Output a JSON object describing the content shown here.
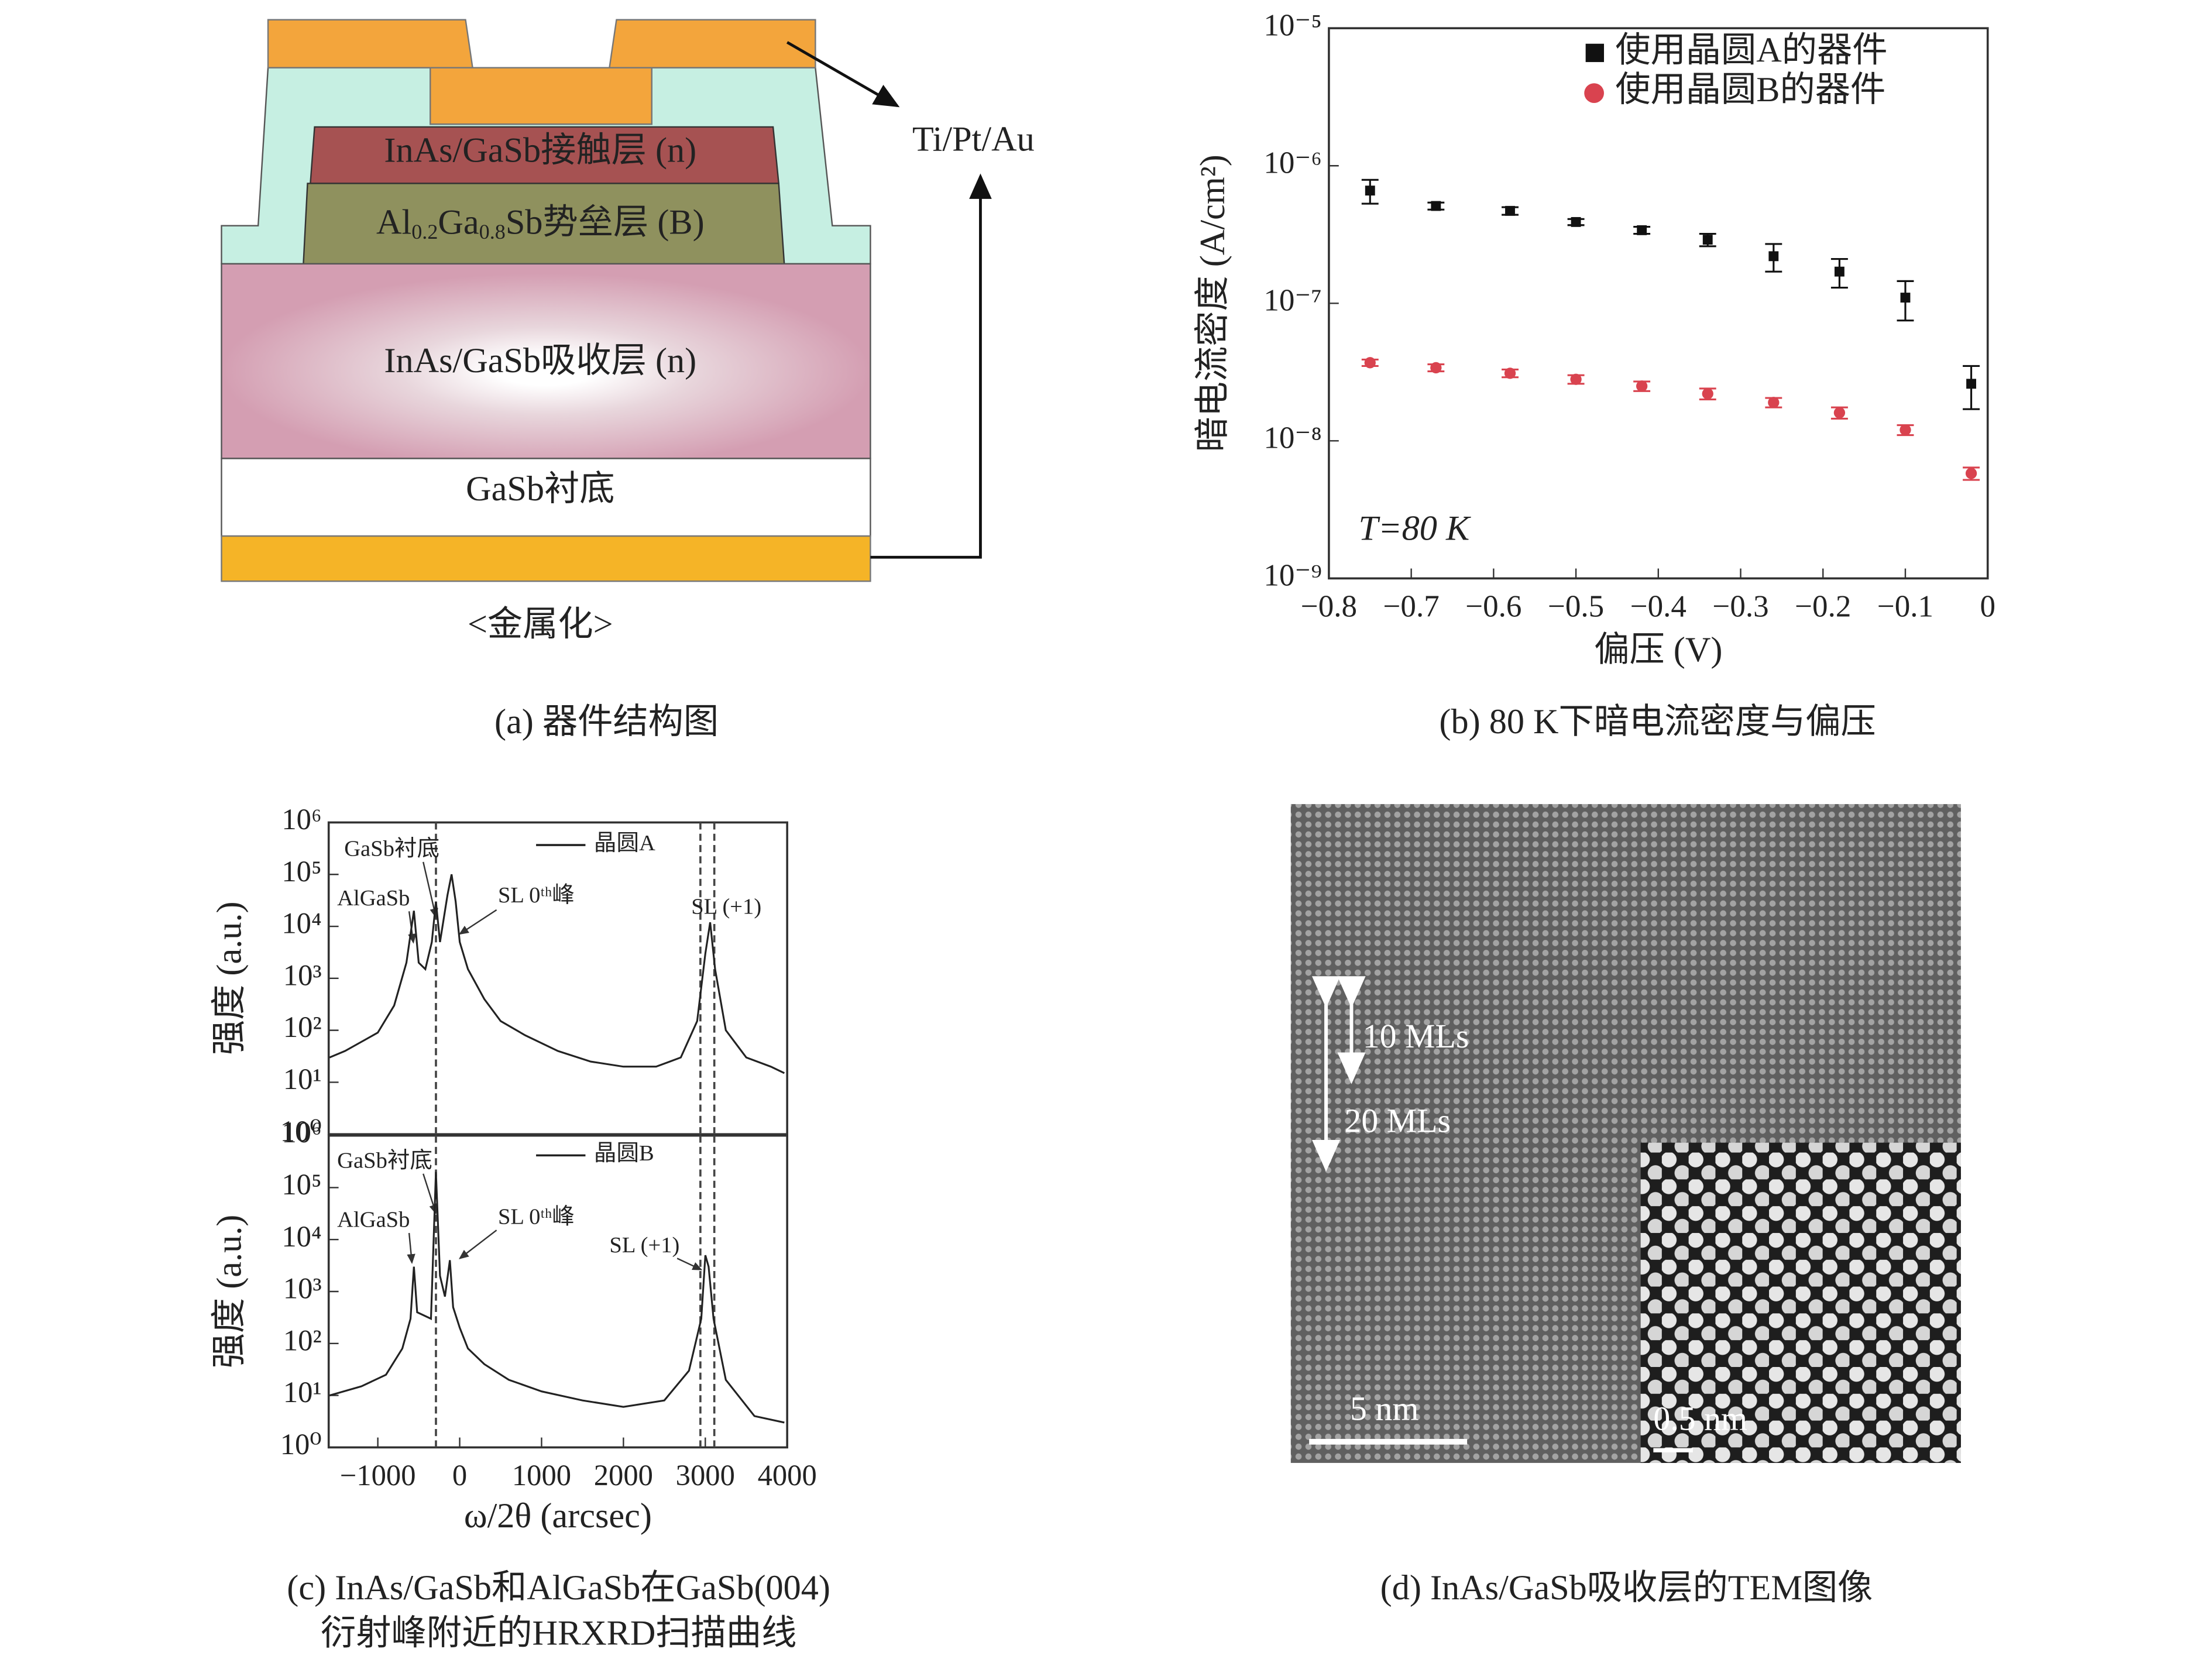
{
  "diagram": {
    "layers": {
      "contact": "InAs/GaSb接触层 (n)",
      "barrier": [
        "Al",
        "0.2",
        "Ga",
        "0.8",
        "Sb势垒层 (B)"
      ],
      "absorber": "InAs/GaSb吸收层 (n)",
      "substrate": "GaSb衬底"
    },
    "metal_label": "Ti/Pt/Au",
    "metallization": "<金属化>"
  },
  "chart_data": [
    {
      "type": "scatter",
      "log_y": true,
      "ylabel": "暗电流密度 (A/cm²)",
      "xlabel": "偏压 (V)",
      "annotations": [
        "T=80 K"
      ],
      "legend": "upper right",
      "xlim": [
        -0.8,
        0
      ],
      "xticks": [
        {
          "value": -0.8,
          "label": "−0.8"
        },
        {
          "value": -0.7,
          "label": "−0.7"
        },
        {
          "value": -0.6,
          "label": "−0.6"
        },
        {
          "value": -0.5,
          "label": "−0.5"
        },
        {
          "value": -0.4,
          "label": "−0.4"
        },
        {
          "value": -0.3,
          "label": "−0.3"
        },
        {
          "value": -0.2,
          "label": "−0.2"
        },
        {
          "value": -0.1,
          "label": "−0.1"
        },
        0
      ],
      "ylim": [
        1e-09,
        1e-05
      ],
      "yticks": [
        {
          "value": 1e-09,
          "label": "10⁻⁹"
        },
        {
          "value": 1e-08,
          "label": "10⁻⁸"
        },
        {
          "value": 1e-07,
          "label": "10⁻⁷"
        },
        {
          "value": 1e-06,
          "label": "10⁻⁶"
        },
        {
          "value": 1e-05,
          "label": "10⁻⁵"
        }
      ],
      "x": [
        -0.75,
        -0.67,
        -0.58,
        -0.5,
        -0.42,
        -0.34,
        -0.26,
        -0.18,
        -0.1,
        -0.02
      ],
      "series": [
        {
          "name": "使用晶圆A的器件",
          "color": "#111111",
          "marker": "square",
          "values": [
            6.6e-07,
            5.1e-07,
            4.7e-07,
            3.9e-07,
            3.4e-07,
            2.9e-07,
            2.2e-07,
            1.7e-07,
            1.1e-07,
            2.6e-08
          ],
          "errors": [
            1.3e-07,
            3e-08,
            3e-08,
            2e-08,
            2e-08,
            3e-08,
            5e-08,
            4e-08,
            3.5e-08,
            9e-09
          ]
        },
        {
          "name": "使用晶圆B的器件",
          "color": "#d9434f",
          "marker": "circle",
          "values": [
            3.7e-08,
            3.4e-08,
            3.1e-08,
            2.8e-08,
            2.5e-08,
            2.2e-08,
            1.9e-08,
            1.6e-08,
            1.2e-08,
            5.8e-09
          ],
          "errors": [
            2e-09,
            2e-09,
            2e-09,
            2e-09,
            2e-09,
            2e-09,
            1.5e-09,
            1.5e-09,
            1e-09,
            6e-10
          ]
        }
      ]
    },
    {
      "type": "line",
      "log_y": true,
      "ylabel": "强度 (a.u.)",
      "annotations": [
        "GaSb衬底",
        "AlGaSb",
        "SL 0ᵗʰ峰",
        "SL (+1)"
      ],
      "xlim": [
        -1600,
        4000
      ],
      "ylim": [
        1,
        1000000
      ],
      "yticks": [
        {
          "value": 1,
          "label": "10⁰"
        },
        {
          "value": 10,
          "label": "10¹"
        },
        {
          "value": 100,
          "label": "10²"
        },
        {
          "value": 1000,
          "label": "10³"
        },
        {
          "value": 10000,
          "label": "10⁴"
        },
        {
          "value": 100000,
          "label": "10⁵"
        },
        {
          "value": 1000000,
          "label": "10⁶"
        }
      ],
      "vlines": [
        -290,
        2940,
        3110
      ],
      "series": [
        {
          "name": "晶圆A",
          "color": "#222222",
          "x": [
            -1590,
            -1400,
            -1200,
            -1000,
            -800,
            -650,
            -560,
            -500,
            -420,
            -340,
            -290,
            -240,
            -150,
            -100,
            -50,
            0,
            100,
            300,
            500,
            800,
            1200,
            1600,
            2000,
            2400,
            2700,
            2900,
            3000,
            3060,
            3120,
            3250,
            3500,
            3800,
            3965
          ],
          "values": [
            30,
            40,
            60,
            90,
            300,
            2000,
            20000,
            2000,
            1500,
            5000,
            30000,
            5000,
            40000,
            100000,
            30000,
            5000,
            1500,
            400,
            150,
            80,
            40,
            25,
            20,
            20,
            30,
            150,
            3000,
            12000,
            1500,
            100,
            30,
            20,
            15
          ]
        }
      ]
    },
    {
      "type": "line",
      "log_y": true,
      "ylabel": "强度 (a.u.)",
      "xlabel": "ω/2θ (arcsec)",
      "annotations": [
        "GaSb衬底",
        "AlGaSb",
        "SL 0ᵗʰ峰",
        "SL (+1)"
      ],
      "xlim": [
        -1600,
        4000
      ],
      "xticks": [
        {
          "value": -1000,
          "label": "−1000"
        },
        0,
        1000,
        2000,
        3000,
        4000
      ],
      "ylim": [
        1,
        1000000
      ],
      "yticks": [
        {
          "value": 1,
          "label": "10⁰"
        },
        {
          "value": 10,
          "label": "10¹"
        },
        {
          "value": 100,
          "label": "10²"
        },
        {
          "value": 1000,
          "label": "10³"
        },
        {
          "value": 10000,
          "label": "10⁴"
        },
        {
          "value": 100000,
          "label": "10⁵"
        },
        {
          "value": 1000000,
          "label": "10⁶"
        }
      ],
      "vlines": [
        -290,
        2940,
        3110
      ],
      "series": [
        {
          "name": "晶圆B",
          "color": "#222222",
          "x": [
            -1590,
            -1200,
            -900,
            -700,
            -600,
            -560,
            -520,
            -350,
            -290,
            -240,
            -180,
            -120,
            -80,
            0,
            100,
            300,
            600,
            1000,
            1500,
            2000,
            2500,
            2800,
            2950,
            3000,
            3040,
            3100,
            3250,
            3600,
            3965
          ],
          "values": [
            10,
            15,
            25,
            80,
            300,
            3000,
            400,
            300,
            200000,
            2000,
            800,
            4000,
            500,
            200,
            80,
            40,
            20,
            12,
            8,
            6,
            8,
            30,
            300,
            5000,
            3000,
            300,
            20,
            4,
            3
          ]
        }
      ]
    }
  ],
  "tem": {
    "layers": [
      "10 MLs",
      "20 MLs"
    ],
    "scale_main": "5 nm",
    "scale_inset": "0.5 nm"
  },
  "captions": {
    "a": "(a) 器件结构图",
    "b": "(b) 80 K下暗电流密度与偏压",
    "c": [
      "(c) InAs/GaSb和AlGaSb在GaSb(004)",
      "衍射峰附近的HRXRD扫描曲线"
    ],
    "d": "(d) InAs/GaSb吸收层的TEM图像"
  }
}
